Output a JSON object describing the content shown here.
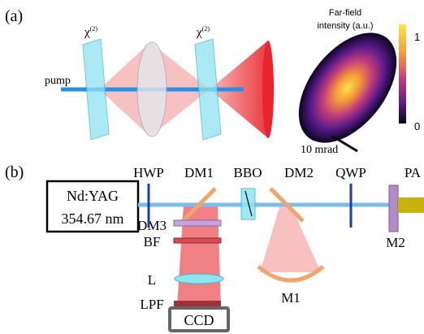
{
  "panel_a": {
    "label": "(a)",
    "crystals": [
      {
        "symbol": "χ",
        "superscript": "(2)"
      },
      {
        "symbol": "χ",
        "superscript": "(2)"
      }
    ],
    "pump": "pump",
    "far_field_title": [
      "Far-field",
      "intensity (a.u.)"
    ],
    "colorbar_ticks": [
      "1",
      "0"
    ],
    "scale_bar": "10 mrad"
  },
  "panel_b": {
    "label": "(b)",
    "components": {
      "hwp": "HWP",
      "dm1": "DM1",
      "bbo": "BBO",
      "dm2": "DM2",
      "qwp": "QWP",
      "pa": "PA",
      "m2": "M2",
      "m1": "M1",
      "dm3": "DM3",
      "bf": "BF",
      "l": "L",
      "lpf": "LPF",
      "ccd": "CCD"
    },
    "laser": [
      "Nd:YAG",
      "354.67 nm"
    ]
  }
}
